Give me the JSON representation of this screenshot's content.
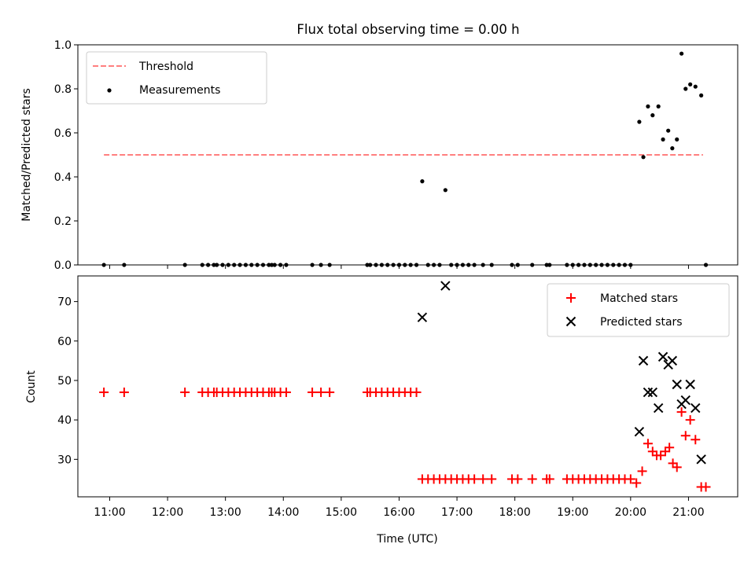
{
  "chart_data": [
    {
      "type": "scatter",
      "title": "Flux total observing time = 0.00 h",
      "xlabel": "",
      "ylabel": "Matched/Predicted stars",
      "xlim": [
        10.45,
        21.85
      ],
      "ylim": [
        0.0,
        1.0
      ],
      "yticks": [
        "0.0",
        "0.2",
        "0.4",
        "0.6",
        "0.8",
        "1.0"
      ],
      "legend": {
        "loc": "upper-left",
        "entries": [
          "Threshold",
          "Measurements"
        ]
      },
      "colors": {
        "threshold": "#ff7f7f",
        "measurements": "#000000"
      },
      "threshold": {
        "name": "Threshold",
        "value": 0.5,
        "x_start": 10.9,
        "x_end": 21.25
      },
      "measurements": {
        "name": "Measurements",
        "x": [
          10.9,
          11.25,
          12.3,
          12.6,
          12.7,
          12.8,
          12.85,
          12.95,
          13.05,
          13.15,
          13.25,
          13.35,
          13.45,
          13.55,
          13.65,
          13.75,
          13.8,
          13.85,
          13.95,
          14.05,
          14.5,
          14.65,
          14.8,
          15.45,
          15.5,
          15.6,
          15.7,
          15.8,
          15.9,
          16.0,
          16.1,
          16.2,
          16.3,
          16.4,
          16.5,
          16.6,
          16.7,
          16.8,
          16.9,
          17.0,
          17.1,
          17.2,
          17.3,
          17.45,
          17.6,
          17.95,
          18.05,
          18.3,
          18.55,
          18.6,
          18.9,
          19.0,
          19.1,
          19.2,
          19.3,
          19.4,
          19.5,
          19.6,
          19.7,
          19.8,
          19.9,
          20.0,
          20.15,
          20.22,
          20.3,
          20.38,
          20.48,
          20.56,
          20.65,
          20.72,
          20.8,
          20.88,
          20.95,
          21.03,
          21.12,
          21.22,
          21.3
        ],
        "y": [
          0.0,
          0.0,
          0.0,
          0.0,
          0.0,
          0.0,
          0.0,
          0.0,
          0.0,
          0.0,
          0.0,
          0.0,
          0.0,
          0.0,
          0.0,
          0.0,
          0.0,
          0.0,
          0.0,
          0.0,
          0.0,
          0.0,
          0.0,
          0.0,
          0.0,
          0.0,
          0.0,
          0.0,
          0.0,
          0.0,
          0.0,
          0.0,
          0.0,
          0.38,
          0.0,
          0.0,
          0.0,
          0.34,
          0.0,
          0.0,
          0.0,
          0.0,
          0.0,
          0.0,
          0.0,
          0.0,
          0.0,
          0.0,
          0.0,
          0.0,
          0.0,
          0.0,
          0.0,
          0.0,
          0.0,
          0.0,
          0.0,
          0.0,
          0.0,
          0.0,
          0.0,
          0.0,
          0.65,
          0.49,
          0.72,
          0.68,
          0.72,
          0.57,
          0.61,
          0.53,
          0.57,
          0.96,
          0.8,
          0.82,
          0.81,
          0.77,
          0.0
        ]
      }
    },
    {
      "type": "scatter",
      "title": "",
      "xlabel": "Time (UTC)",
      "ylabel": "Count",
      "xlim": [
        10.45,
        21.85
      ],
      "ylim": [
        20.5,
        76.5
      ],
      "xticks": [
        "11:00",
        "12:00",
        "13:00",
        "14:00",
        "15:00",
        "16:00",
        "17:00",
        "18:00",
        "19:00",
        "20:00",
        "21:00"
      ],
      "yticks": [
        "30",
        "40",
        "50",
        "60",
        "70"
      ],
      "legend": {
        "loc": "upper-right",
        "entries": [
          "Matched stars",
          "Predicted stars"
        ]
      },
      "colors": {
        "matched": "#ff0000",
        "predicted": "#000000"
      },
      "series": [
        {
          "name": "Matched stars",
          "marker": "plus",
          "x": [
            10.9,
            11.25,
            12.3,
            12.6,
            12.7,
            12.8,
            12.85,
            12.95,
            13.05,
            13.15,
            13.25,
            13.35,
            13.45,
            13.55,
            13.65,
            13.75,
            13.8,
            13.85,
            13.95,
            14.05,
            14.5,
            14.65,
            14.8,
            15.45,
            15.5,
            15.6,
            15.7,
            15.8,
            15.9,
            16.0,
            16.1,
            16.2,
            16.3,
            16.4,
            16.5,
            16.6,
            16.7,
            16.8,
            16.9,
            17.0,
            17.1,
            17.2,
            17.3,
            17.45,
            17.6,
            17.95,
            18.05,
            18.3,
            18.55,
            18.6,
            18.9,
            19.0,
            19.1,
            19.2,
            19.3,
            19.4,
            19.5,
            19.6,
            19.7,
            19.8,
            19.9,
            20.0,
            20.1,
            20.2,
            20.3,
            20.38,
            20.45,
            20.52,
            20.6,
            20.67,
            20.73,
            20.8,
            20.88,
            20.95,
            21.03,
            21.12,
            21.22,
            21.3
          ],
          "y": [
            47,
            47,
            47,
            47,
            47,
            47,
            47,
            47,
            47,
            47,
            47,
            47,
            47,
            47,
            47,
            47,
            47,
            47,
            47,
            47,
            47,
            47,
            47,
            47,
            47,
            47,
            47,
            47,
            47,
            47,
            47,
            47,
            47,
            25,
            25,
            25,
            25,
            25,
            25,
            25,
            25,
            25,
            25,
            25,
            25,
            25,
            25,
            25,
            25,
            25,
            25,
            25,
            25,
            25,
            25,
            25,
            25,
            25,
            25,
            25,
            25,
            25,
            24,
            27,
            34,
            32,
            31,
            31,
            32,
            33,
            29,
            28,
            42,
            36,
            40,
            35,
            23,
            23
          ]
        },
        {
          "name": "Predicted stars",
          "marker": "x",
          "x": [
            16.4,
            16.8,
            20.15,
            20.22,
            20.3,
            20.38,
            20.48,
            20.56,
            20.65,
            20.72,
            20.8,
            20.88,
            20.95,
            21.03,
            21.12,
            21.22
          ],
          "y": [
            66,
            74,
            37,
            55,
            47,
            47,
            43,
            56,
            54,
            55,
            49,
            44,
            45,
            49,
            43,
            30
          ]
        }
      ]
    }
  ]
}
